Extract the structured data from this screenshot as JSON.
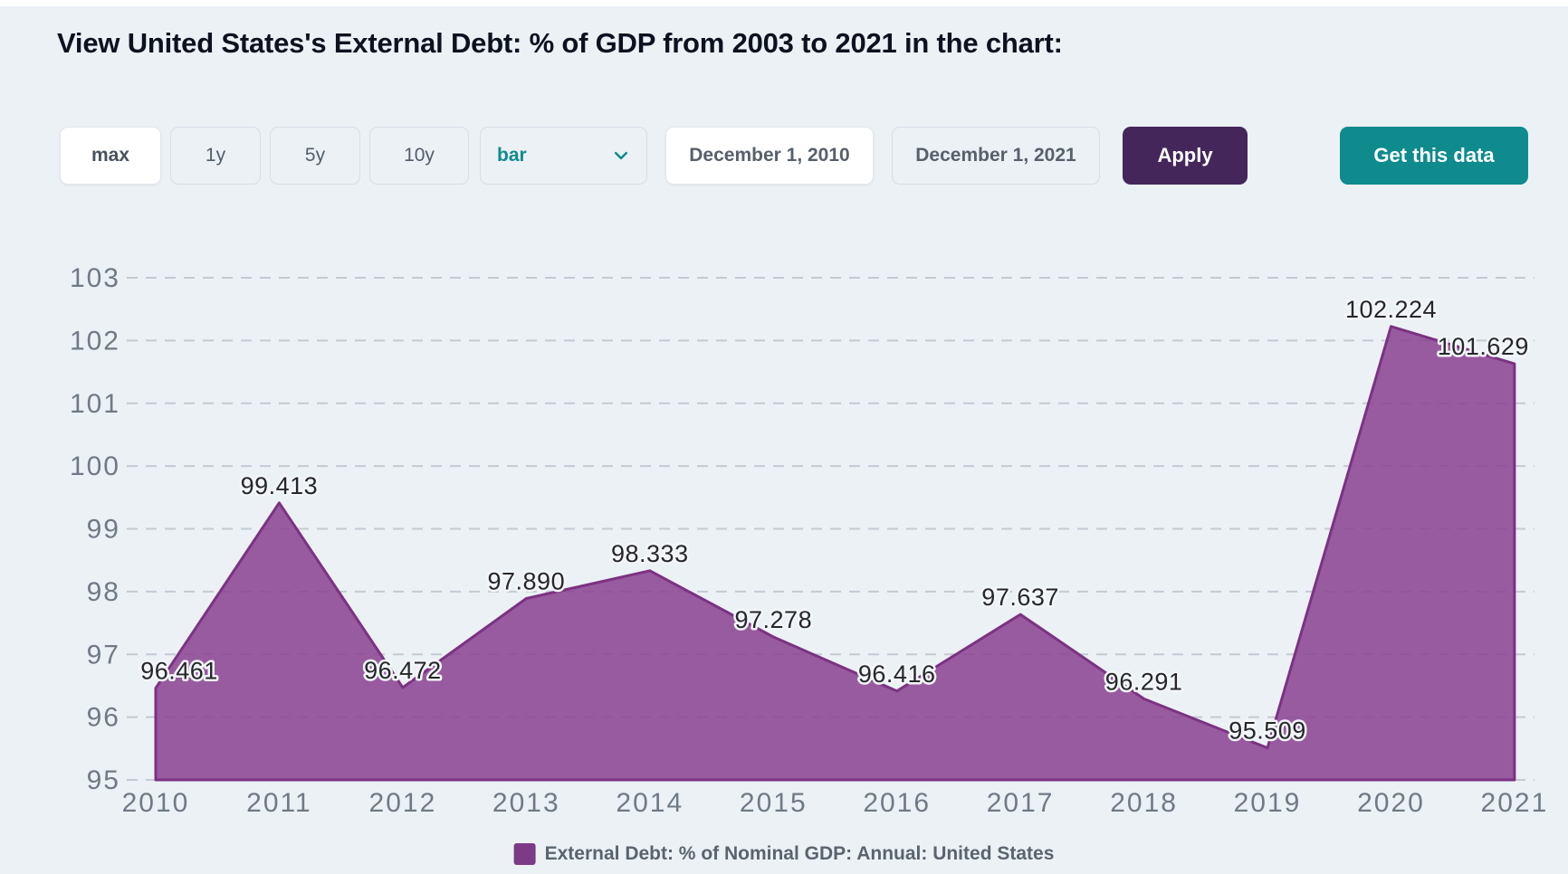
{
  "page": {
    "title": "View United States's External Debt: % of GDP from 2003 to 2021 in the chart:"
  },
  "toolbar": {
    "range_buttons": [
      {
        "label": "max",
        "active": true
      },
      {
        "label": "1y",
        "active": false
      },
      {
        "label": "5y",
        "active": false
      },
      {
        "label": "10y",
        "active": false
      }
    ],
    "chart_type_select": {
      "value": "bar"
    },
    "start_date_value": "December 1, 2010",
    "end_date_value": "December 1, 2021",
    "apply_label": "Apply",
    "get_data_label": "Get this data"
  },
  "chart_data": {
    "type": "area",
    "x": [
      "2010",
      "2011",
      "2012",
      "2013",
      "2014",
      "2015",
      "2016",
      "2017",
      "2018",
      "2019",
      "2020",
      "2021"
    ],
    "series": [
      {
        "name": "External Debt: % of Nominal GDP: Annual: United States",
        "values": [
          96.461,
          99.413,
          96.472,
          97.89,
          98.333,
          97.278,
          96.416,
          97.637,
          96.291,
          95.509,
          102.224,
          101.629
        ]
      }
    ],
    "data_labels": [
      "96.461",
      "99.413",
      "96.472",
      "97.890",
      "98.333",
      "97.278",
      "96.416",
      "97.637",
      "96.291",
      "95.509",
      "102.224",
      "101.629"
    ],
    "ylim": [
      95,
      103
    ],
    "yticks": [
      95,
      96,
      97,
      98,
      99,
      100,
      101,
      102,
      103
    ],
    "xlabel": "",
    "ylabel": "",
    "grid": "horizontal-dashed",
    "legend_position": "bottom"
  },
  "legend": {
    "label": "External Debt: % of Nominal GDP: Annual: United States"
  },
  "colors": {
    "background": "#ecf1f6",
    "accent_teal": "#0f8b8e",
    "accent_purple_dark": "#45265b",
    "area_fill": "#8a4191",
    "area_line": "#7c3282",
    "legend_swatch": "#7d3a87"
  }
}
